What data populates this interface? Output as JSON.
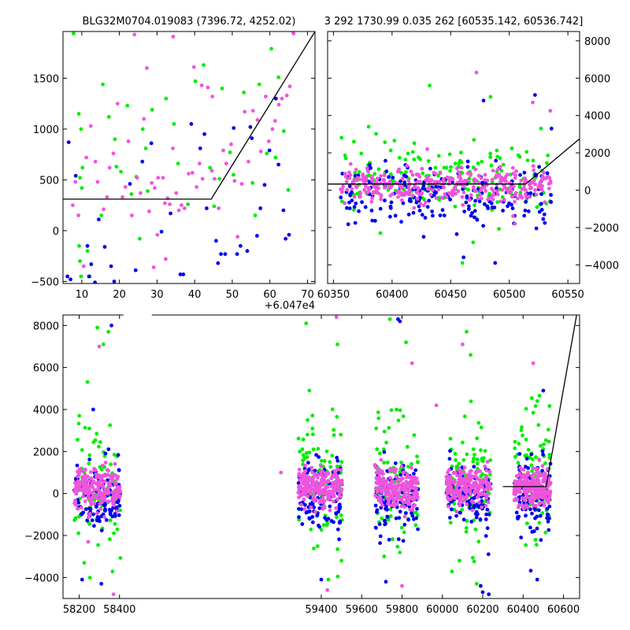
{
  "header": {
    "left_title": "BLG32M0704.019083 (7396.72, 4252.02)",
    "right_title": "3 292 1730.99 0.035 262 [60535.142, 60536.742]"
  },
  "colors": {
    "series_green": "#00ee00",
    "series_blue": "#0000ee",
    "series_magenta": "#ee55dd",
    "model_line": "#000000",
    "frame": "#000000"
  },
  "chart_data": [
    {
      "type": "scatter",
      "panel": "top-left zoom",
      "title": "BLG32M0704.019083 (7396.72, 4252.02)",
      "x_offset_label": "+6.047e4",
      "x_offset": 60470,
      "xlim": [
        5,
        72
      ],
      "ylim": [
        -520,
        1960
      ],
      "x_ticks": [
        10,
        20,
        30,
        40,
        50,
        60,
        70
      ],
      "y_ticks": [
        -500,
        0,
        500,
        1000,
        1500
      ],
      "y_axis_side": "left",
      "series": [
        {
          "color": "green",
          "points": [
            [
              7.8,
              1940
            ],
            [
              9.2,
              1150
            ],
            [
              9.8,
              1000
            ],
            [
              9.5,
              520
            ],
            [
              10,
              420
            ],
            [
              9.3,
              -150
            ],
            [
              9.5,
              -300
            ],
            [
              9.8,
              -450
            ],
            [
              10.2,
              620
            ],
            [
              15.2,
              150
            ],
            [
              17.2,
              1120
            ],
            [
              18.8,
              900
            ],
            [
              19.2,
              630
            ],
            [
              20.4,
              580
            ],
            [
              22.1,
              1230
            ],
            [
              23.2,
              360
            ],
            [
              24.5,
              530
            ],
            [
              26.2,
              1000
            ],
            [
              27,
              810
            ],
            [
              27.5,
              390
            ],
            [
              28.7,
              1190
            ],
            [
              32.4,
              1300
            ],
            [
              34.5,
              1050
            ],
            [
              35.6,
              660
            ],
            [
              38.2,
              260
            ],
            [
              40.2,
              1470
            ],
            [
              42.4,
              1630
            ],
            [
              44.1,
              620
            ],
            [
              45.2,
              240
            ],
            [
              46.6,
              510
            ],
            [
              47.3,
              1400
            ],
            [
              49.4,
              770
            ],
            [
              50.3,
              550
            ],
            [
              53.1,
              1360
            ],
            [
              55.4,
              470
            ],
            [
              56.1,
              150
            ],
            [
              57.2,
              1440
            ],
            [
              59.2,
              760
            ],
            [
              60.4,
              1790
            ],
            [
              61.5,
              720
            ],
            [
              62.3,
              1510
            ],
            [
              63.7,
              980
            ],
            [
              64.9,
              400
            ],
            [
              15.6,
              1440
            ],
            [
              25.4,
              -80
            ],
            [
              11.5,
              -200
            ],
            [
              12.1,
              -450
            ]
          ]
        },
        {
          "color": "blue",
          "points": [
            [
              6.5,
              870
            ],
            [
              6.2,
              -450
            ],
            [
              7,
              -480
            ],
            [
              8.4,
              540
            ],
            [
              11.5,
              -150
            ],
            [
              11.9,
              -450
            ],
            [
              12.5,
              -330
            ],
            [
              13.5,
              -510
            ],
            [
              14.5,
              110
            ],
            [
              16.1,
              -160
            ],
            [
              17.8,
              -350
            ],
            [
              18.6,
              -500
            ],
            [
              22.8,
              460
            ],
            [
              24.3,
              -390
            ],
            [
              26.1,
              680
            ],
            [
              28.5,
              860
            ],
            [
              31.2,
              -10
            ],
            [
              33.6,
              170
            ],
            [
              36.2,
              -430
            ],
            [
              37,
              -430
            ],
            [
              39.1,
              1050
            ],
            [
              41.5,
              810
            ],
            [
              42.6,
              950
            ],
            [
              43.2,
              220
            ],
            [
              45.7,
              -100
            ],
            [
              46.2,
              -320
            ],
            [
              47,
              -230
            ],
            [
              48.1,
              -230
            ],
            [
              50.4,
              1010
            ],
            [
              51.3,
              -230
            ],
            [
              52.2,
              -150
            ],
            [
              54.8,
              1020
            ],
            [
              55.2,
              910
            ],
            [
              56.6,
              -50
            ],
            [
              57.5,
              220
            ],
            [
              58.6,
              450
            ],
            [
              59.9,
              790
            ],
            [
              61.6,
              1300
            ],
            [
              62.3,
              650
            ],
            [
              63.6,
              200
            ],
            [
              64.2,
              -80
            ],
            [
              65.1,
              -40
            ],
            [
              54,
              -200
            ]
          ]
        },
        {
          "color": "magenta",
          "points": [
            [
              7.6,
              250
            ],
            [
              8.3,
              480
            ],
            [
              9.1,
              150
            ],
            [
              10.5,
              -350
            ],
            [
              11.2,
              720
            ],
            [
              12.4,
              1030
            ],
            [
              13.6,
              680
            ],
            [
              14.2,
              480
            ],
            [
              15.8,
              210
            ],
            [
              16.7,
              330
            ],
            [
              17.4,
              620
            ],
            [
              18.4,
              760
            ],
            [
              19.5,
              1250
            ],
            [
              20.8,
              330
            ],
            [
              21.6,
              430
            ],
            [
              22.4,
              880
            ],
            [
              23.3,
              150
            ],
            [
              24.7,
              520
            ],
            [
              25.6,
              370
            ],
            [
              26.5,
              1100
            ],
            [
              27.3,
              1600
            ],
            [
              27.9,
              190
            ],
            [
              28.6,
              470
            ],
            [
              29.4,
              420
            ],
            [
              30.3,
              520
            ],
            [
              31.6,
              520
            ],
            [
              32.1,
              270
            ],
            [
              32.8,
              320
            ],
            [
              33.4,
              260
            ],
            [
              34.2,
              810
            ],
            [
              35.1,
              370
            ],
            [
              35.8,
              200
            ],
            [
              36.5,
              250
            ],
            [
              37.3,
              220
            ],
            [
              38.4,
              560
            ],
            [
              39.4,
              570
            ],
            [
              40.5,
              430
            ],
            [
              41.3,
              660
            ],
            [
              42.1,
              510
            ],
            [
              43.5,
              1410
            ],
            [
              44.6,
              590
            ],
            [
              45.3,
              510
            ],
            [
              46.4,
              220
            ],
            [
              47.6,
              790
            ],
            [
              48.4,
              660
            ],
            [
              49.7,
              850
            ],
            [
              50.6,
              490
            ],
            [
              51.4,
              -60
            ],
            [
              52.5,
              460
            ],
            [
              53.3,
              1170
            ],
            [
              54.3,
              680
            ],
            [
              55.5,
              1180
            ],
            [
              56.7,
              1090
            ],
            [
              57.6,
              780
            ],
            [
              58.9,
              1320
            ],
            [
              59.7,
              880
            ],
            [
              60.7,
              1000
            ],
            [
              61.4,
              1080
            ],
            [
              62.4,
              1240
            ],
            [
              63.2,
              1300
            ],
            [
              64.5,
              1330
            ],
            [
              65.3,
              1420
            ],
            [
              66.3,
              1940
            ],
            [
              66.1,
              1960
            ],
            [
              24,
              1930
            ],
            [
              29.1,
              -360
            ],
            [
              34.3,
              1910
            ],
            [
              39.8,
              1610
            ],
            [
              41.9,
              1430
            ],
            [
              44.7,
              1320
            ],
            [
              32.3,
              -280
            ],
            [
              30.1,
              -40
            ]
          ]
        }
      ],
      "model": {
        "points": [
          [
            5,
            310
          ],
          [
            44.4,
            310
          ],
          [
            72,
            1960
          ]
        ]
      }
    },
    {
      "type": "scatter",
      "panel": "top-right",
      "xlim": [
        60345,
        60560
      ],
      "ylim": [
        -5000,
        8500
      ],
      "x_ticks": [
        60350,
        60400,
        60450,
        60500,
        60550
      ],
      "y_ticks": [
        -4000,
        -2000,
        0,
        2000,
        4000,
        6000,
        8000
      ],
      "y_axis_side": "right",
      "cloud": [
        {
          "color": "green",
          "x_range": [
            60356,
            60536
          ],
          "y_mean": 600,
          "y_sd": 900,
          "n": 170,
          "seed": 11
        },
        {
          "color": "blue",
          "x_range": [
            60356,
            60536
          ],
          "y_mean": -200,
          "y_sd": 750,
          "n": 210,
          "seed": 12
        },
        {
          "color": "magenta",
          "x_range": [
            60356,
            60536
          ],
          "y_mean": 250,
          "y_sd": 450,
          "n": 330,
          "seed": 13
        }
      ],
      "outliers": [
        {
          "color": "magenta",
          "points": [
            [
              60472,
              6300
            ],
            [
              60520,
              4700
            ],
            [
              60535,
              4250
            ],
            [
              60405,
              1000
            ],
            [
              60430,
              2200
            ],
            [
              60505,
              -1800
            ]
          ]
        },
        {
          "color": "green",
          "points": [
            [
              60432,
              5600
            ],
            [
              60484,
              5000
            ],
            [
              60527,
              3300
            ],
            [
              60380,
              3400
            ],
            [
              60390,
              -2300
            ],
            [
              60460,
              -3900
            ]
          ]
        },
        {
          "color": "blue",
          "points": [
            [
              60478,
              4800
            ],
            [
              60522,
              5100
            ],
            [
              60461,
              -3600
            ],
            [
              60488,
              -3900
            ],
            [
              60536,
              3300
            ],
            [
              60427,
              -2500
            ]
          ]
        }
      ],
      "model": {
        "points": [
          [
            60345,
            330
          ],
          [
            60514,
            330
          ],
          [
            60560,
            2750
          ]
        ]
      }
    },
    {
      "type": "scatter",
      "panel": "bottom full light curve",
      "xlim": [
        58120,
        60680
      ],
      "ylim": [
        -5000,
        8500
      ],
      "x_break_gap": [
        58420,
        58560
      ],
      "x_ticks": [
        58200,
        58400,
        59400,
        59600,
        59800,
        60000,
        60200,
        60400,
        60600
      ],
      "y_ticks": [
        -4000,
        -2000,
        0,
        2000,
        4000,
        6000,
        8000
      ],
      "y_axis_side": "left",
      "seasons": [
        {
          "x_range": [
            58175,
            58405
          ]
        },
        {
          "x_range": [
            59285,
            59505
          ]
        },
        {
          "x_range": [
            59665,
            59880
          ]
        },
        {
          "x_range": [
            60020,
            60240
          ]
        },
        {
          "x_range": [
            60355,
            60537
          ]
        }
      ],
      "season_cloud": [
        {
          "color": "green",
          "y_mean": 700,
          "y_sd": 1700,
          "n": 85,
          "seed": 21
        },
        {
          "color": "blue",
          "y_mean": -150,
          "y_sd": 850,
          "n": 110,
          "seed": 22
        },
        {
          "color": "magenta",
          "y_mean": 300,
          "y_sd": 450,
          "n": 210,
          "seed": 23
        }
      ],
      "outliers": [
        {
          "color": "green",
          "points": [
            [
              58290,
              7900
            ],
            [
              58320,
              7100
            ],
            [
              58345,
              7700
            ],
            [
              59325,
              8100
            ],
            [
              59480,
              7100
            ],
            [
              59820,
              7200
            ],
            [
              60120,
              7700
            ],
            [
              60140,
              6600
            ],
            [
              59740,
              8300
            ],
            [
              58225,
              -3300
            ],
            [
              58200,
              -1100
            ],
            [
              59435,
              -4100
            ],
            [
              59500,
              -3200
            ],
            [
              60085,
              -3200
            ],
            [
              60170,
              -4300
            ],
            [
              60470,
              4400
            ]
          ]
        },
        {
          "color": "blue",
          "points": [
            [
              58360,
              8000
            ],
            [
              59790,
              8200
            ],
            [
              60200,
              -4700
            ],
            [
              58215,
              -4100
            ],
            [
              58310,
              -4300
            ],
            [
              59400,
              -4100
            ],
            [
              59720,
              -4200
            ],
            [
              60470,
              -4100
            ],
            [
              58270,
              4000
            ],
            [
              59780,
              8300
            ],
            [
              60230,
              -4800
            ],
            [
              60190,
              -4400
            ],
            [
              60500,
              4900
            ]
          ]
        },
        {
          "color": "magenta",
          "points": [
            [
              58300,
              7000
            ],
            [
              59200,
              1000
            ],
            [
              59475,
              8400
            ],
            [
              59850,
              6200
            ],
            [
              59430,
              -4600
            ],
            [
              59800,
              -4400
            ],
            [
              58370,
              -4800
            ],
            [
              60450,
              6200
            ],
            [
              60100,
              7100
            ],
            [
              59970,
              4200
            ],
            [
              58245,
              -2300
            ]
          ]
        }
      ],
      "model": {
        "points": [
          [
            60300,
            330
          ],
          [
            60514,
            330
          ],
          [
            60680,
            9300
          ]
        ]
      }
    }
  ]
}
